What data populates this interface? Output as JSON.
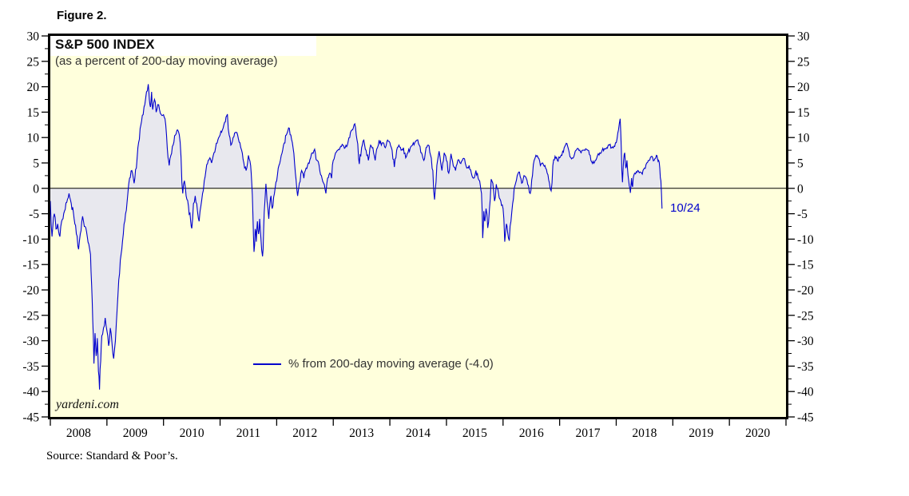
{
  "figure": {
    "label": "Figure 2."
  },
  "watermark": "yardeni.com",
  "source_note": "Source: Standard & Poor’s.",
  "colors": {
    "plot_bg": "#FFFFDC",
    "area_fill": "#E8E8EE",
    "line": "#0000CC",
    "annotation": "#0000CC",
    "zero_line": "#000000",
    "axis_text": "#000000"
  },
  "chart_data": {
    "type": "area",
    "title": "S&P 500 INDEX",
    "subtitle": "(as a percent of 200-day moving average)",
    "legend": {
      "label": "% from 200-day moving average (-4.0)"
    },
    "annotation": {
      "label": "10/24",
      "value": -4.0
    },
    "x_axis": {
      "start_year": 2008,
      "end_year": 2021,
      "year_labels": [
        "2008",
        "2009",
        "2010",
        "2011",
        "2012",
        "2013",
        "2014",
        "2015",
        "2016",
        "2017",
        "2018",
        "2019",
        "2020"
      ]
    },
    "y_axis": {
      "min": -45,
      "max": 30,
      "major_step": 5,
      "minor_step": 2.5
    },
    "zero_line": 0,
    "grid": false,
    "legend_position": "bottom-center-inside",
    "series_name": "% from 200-day moving average",
    "series": [
      [
        2008.0,
        -2.5
      ],
      [
        2008.03,
        -9.5
      ],
      [
        2008.07,
        -5.0
      ],
      [
        2008.1,
        -8.0
      ],
      [
        2008.13,
        -7.0
      ],
      [
        2008.17,
        -9.5
      ],
      [
        2008.2,
        -6.5
      ],
      [
        2008.25,
        -4.5
      ],
      [
        2008.29,
        -2.8
      ],
      [
        2008.33,
        -1.0
      ],
      [
        2008.37,
        -3.0
      ],
      [
        2008.42,
        -6.0
      ],
      [
        2008.46,
        -9.0
      ],
      [
        2008.5,
        -12.0
      ],
      [
        2008.53,
        -9.0
      ],
      [
        2008.57,
        -5.5
      ],
      [
        2008.6,
        -7.5
      ],
      [
        2008.64,
        -8.5
      ],
      [
        2008.68,
        -11.0
      ],
      [
        2008.71,
        -13.0
      ],
      [
        2008.73,
        -19.0
      ],
      [
        2008.75,
        -26.0
      ],
      [
        2008.77,
        -34.5
      ],
      [
        2008.79,
        -28.5
      ],
      [
        2008.81,
        -33.0
      ],
      [
        2008.83,
        -29.5
      ],
      [
        2008.85,
        -36.0
      ],
      [
        2008.87,
        -39.6
      ],
      [
        2008.89,
        -34.0
      ],
      [
        2008.91,
        -29.0
      ],
      [
        2008.94,
        -27.5
      ],
      [
        2008.97,
        -25.5
      ],
      [
        2009.0,
        -28.0
      ],
      [
        2009.03,
        -31.0
      ],
      [
        2009.06,
        -27.5
      ],
      [
        2009.09,
        -30.5
      ],
      [
        2009.12,
        -33.5
      ],
      [
        2009.15,
        -30.0
      ],
      [
        2009.18,
        -24.0
      ],
      [
        2009.21,
        -18.0
      ],
      [
        2009.25,
        -13.0
      ],
      [
        2009.29,
        -9.0
      ],
      [
        2009.33,
        -5.0
      ],
      [
        2009.37,
        -1.0
      ],
      [
        2009.4,
        2.0
      ],
      [
        2009.44,
        3.5
      ],
      [
        2009.48,
        1.0
      ],
      [
        2009.52,
        4.0
      ],
      [
        2009.56,
        9.0
      ],
      [
        2009.6,
        12.5
      ],
      [
        2009.64,
        14.5
      ],
      [
        2009.67,
        16.5
      ],
      [
        2009.7,
        19.0
      ],
      [
        2009.73,
        20.5
      ],
      [
        2009.75,
        17.5
      ],
      [
        2009.77,
        16.0
      ],
      [
        2009.79,
        19.0
      ],
      [
        2009.81,
        15.5
      ],
      [
        2009.84,
        17.5
      ],
      [
        2009.87,
        15.0
      ],
      [
        2009.9,
        16.5
      ],
      [
        2009.93,
        15.5
      ],
      [
        2009.96,
        14.5
      ],
      [
        2010.0,
        14.5
      ],
      [
        2010.04,
        12.5
      ],
      [
        2010.08,
        6.0
      ],
      [
        2010.1,
        4.5
      ],
      [
        2010.13,
        6.5
      ],
      [
        2010.17,
        8.5
      ],
      [
        2010.21,
        10.5
      ],
      [
        2010.25,
        11.5
      ],
      [
        2010.28,
        10.5
      ],
      [
        2010.31,
        6.0
      ],
      [
        2010.34,
        -1.0
      ],
      [
        2010.37,
        1.5
      ],
      [
        2010.4,
        -1.5
      ],
      [
        2010.44,
        -3.5
      ],
      [
        2010.48,
        -6.5
      ],
      [
        2010.5,
        -7.9
      ],
      [
        2010.53,
        -3.0
      ],
      [
        2010.56,
        -1.5
      ],
      [
        2010.6,
        -4.5
      ],
      [
        2010.63,
        -6.5
      ],
      [
        2010.66,
        -3.5
      ],
      [
        2010.69,
        -1.0
      ],
      [
        2010.72,
        1.5
      ],
      [
        2010.75,
        3.5
      ],
      [
        2010.79,
        5.5
      ],
      [
        2010.82,
        6.0
      ],
      [
        2010.85,
        5.0
      ],
      [
        2010.88,
        6.5
      ],
      [
        2010.92,
        8.0
      ],
      [
        2010.96,
        9.5
      ],
      [
        2011.0,
        10.5
      ],
      [
        2011.04,
        11.5
      ],
      [
        2011.08,
        13.0
      ],
      [
        2011.13,
        14.6
      ],
      [
        2011.16,
        10.5
      ],
      [
        2011.19,
        8.5
      ],
      [
        2011.23,
        10.0
      ],
      [
        2011.27,
        11.0
      ],
      [
        2011.31,
        10.5
      ],
      [
        2011.35,
        9.0
      ],
      [
        2011.38,
        7.5
      ],
      [
        2011.42,
        5.0
      ],
      [
        2011.46,
        3.5
      ],
      [
        2011.5,
        6.5
      ],
      [
        2011.54,
        4.5
      ],
      [
        2011.56,
        1.0
      ],
      [
        2011.58,
        -5.0
      ],
      [
        2011.6,
        -12.5
      ],
      [
        2011.62,
        -8.0
      ],
      [
        2011.64,
        -10.5
      ],
      [
        2011.66,
        -6.5
      ],
      [
        2011.68,
        -9.0
      ],
      [
        2011.7,
        -6.0
      ],
      [
        2011.72,
        -9.5
      ],
      [
        2011.75,
        -13.4
      ],
      [
        2011.77,
        -8.0
      ],
      [
        2011.79,
        -3.0
      ],
      [
        2011.81,
        0.9
      ],
      [
        2011.83,
        -2.5
      ],
      [
        2011.86,
        -6.0
      ],
      [
        2011.88,
        -3.0
      ],
      [
        2011.9,
        -1.5
      ],
      [
        2011.92,
        -4.0
      ],
      [
        2011.96,
        -1.0
      ],
      [
        2012.0,
        1.5
      ],
      [
        2012.04,
        4.5
      ],
      [
        2012.08,
        6.5
      ],
      [
        2012.12,
        8.5
      ],
      [
        2012.17,
        10.5
      ],
      [
        2012.21,
        11.9
      ],
      [
        2012.25,
        10.5
      ],
      [
        2012.29,
        8.0
      ],
      [
        2012.33,
        3.0
      ],
      [
        2012.37,
        -1.5
      ],
      [
        2012.4,
        1.0
      ],
      [
        2012.44,
        3.5
      ],
      [
        2012.48,
        2.0
      ],
      [
        2012.52,
        4.0
      ],
      [
        2012.56,
        5.0
      ],
      [
        2012.6,
        6.0
      ],
      [
        2012.63,
        7.0
      ],
      [
        2012.67,
        7.7
      ],
      [
        2012.71,
        5.5
      ],
      [
        2012.75,
        4.5
      ],
      [
        2012.79,
        2.5
      ],
      [
        2012.83,
        1.0
      ],
      [
        2012.87,
        -1.0
      ],
      [
        2012.9,
        2.0
      ],
      [
        2012.94,
        3.0
      ],
      [
        2012.97,
        2.0
      ],
      [
        2013.0,
        5.5
      ],
      [
        2013.04,
        7.0
      ],
      [
        2013.08,
        7.5
      ],
      [
        2013.12,
        8.0
      ],
      [
        2013.17,
        8.5
      ],
      [
        2013.21,
        8.0
      ],
      [
        2013.25,
        8.5
      ],
      [
        2013.29,
        10.0
      ],
      [
        2013.33,
        11.5
      ],
      [
        2013.38,
        12.7
      ],
      [
        2013.42,
        9.5
      ],
      [
        2013.46,
        4.8
      ],
      [
        2013.5,
        8.0
      ],
      [
        2013.54,
        9.5
      ],
      [
        2013.58,
        7.5
      ],
      [
        2013.62,
        5.5
      ],
      [
        2013.66,
        8.5
      ],
      [
        2013.7,
        8.0
      ],
      [
        2013.74,
        5.5
      ],
      [
        2013.78,
        8.0
      ],
      [
        2013.81,
        9.5
      ],
      [
        2013.85,
        8.5
      ],
      [
        2013.88,
        9.0
      ],
      [
        2013.92,
        8.0
      ],
      [
        2013.96,
        9.5
      ],
      [
        2014.0,
        9.0
      ],
      [
        2014.04,
        7.5
      ],
      [
        2014.08,
        4.2
      ],
      [
        2014.12,
        7.5
      ],
      [
        2014.16,
        8.5
      ],
      [
        2014.2,
        7.5
      ],
      [
        2014.24,
        8.0
      ],
      [
        2014.28,
        6.0
      ],
      [
        2014.32,
        7.0
      ],
      [
        2014.36,
        8.0
      ],
      [
        2014.4,
        8.5
      ],
      [
        2014.44,
        9.0
      ],
      [
        2014.48,
        9.5
      ],
      [
        2014.52,
        8.5
      ],
      [
        2014.56,
        7.0
      ],
      [
        2014.6,
        5.5
      ],
      [
        2014.64,
        8.0
      ],
      [
        2014.68,
        8.5
      ],
      [
        2014.72,
        6.5
      ],
      [
        2014.76,
        3.5
      ],
      [
        2014.79,
        -2.2
      ],
      [
        2014.83,
        4.5
      ],
      [
        2014.87,
        7.3
      ],
      [
        2014.9,
        5.0
      ],
      [
        2014.92,
        3.5
      ],
      [
        2014.96,
        7.0
      ],
      [
        2015.0,
        5.5
      ],
      [
        2015.04,
        3.0
      ],
      [
        2015.08,
        6.8
      ],
      [
        2015.12,
        4.5
      ],
      [
        2015.16,
        3.5
      ],
      [
        2015.2,
        5.5
      ],
      [
        2015.24,
        5.0
      ],
      [
        2015.28,
        5.5
      ],
      [
        2015.32,
        5.8
      ],
      [
        2015.36,
        4.0
      ],
      [
        2015.4,
        4.5
      ],
      [
        2015.44,
        3.0
      ],
      [
        2015.48,
        2.0
      ],
      [
        2015.52,
        3.5
      ],
      [
        2015.56,
        2.0
      ],
      [
        2015.6,
        0.5
      ],
      [
        2015.62,
        -1.0
      ],
      [
        2015.64,
        -9.8
      ],
      [
        2015.66,
        -4.5
      ],
      [
        2015.68,
        -6.5
      ],
      [
        2015.7,
        -4.0
      ],
      [
        2015.73,
        -7.8
      ],
      [
        2015.76,
        -4.0
      ],
      [
        2015.79,
        1.8
      ],
      [
        2015.82,
        1.0
      ],
      [
        2015.85,
        -2.5
      ],
      [
        2015.88,
        0.8
      ],
      [
        2015.92,
        -1.0
      ],
      [
        2015.96,
        -2.5
      ],
      [
        2016.0,
        -4.0
      ],
      [
        2016.03,
        -10.5
      ],
      [
        2016.06,
        -7.0
      ],
      [
        2016.08,
        -8.5
      ],
      [
        2016.11,
        -10.3
      ],
      [
        2016.14,
        -6.5
      ],
      [
        2016.17,
        -3.0
      ],
      [
        2016.21,
        0.5
      ],
      [
        2016.25,
        2.5
      ],
      [
        2016.29,
        3.2
      ],
      [
        2016.33,
        1.0
      ],
      [
        2016.37,
        2.5
      ],
      [
        2016.41,
        2.0
      ],
      [
        2016.45,
        0.5
      ],
      [
        2016.48,
        -1.0
      ],
      [
        2016.52,
        2.5
      ],
      [
        2016.55,
        5.5
      ],
      [
        2016.58,
        6.5
      ],
      [
        2016.62,
        6.0
      ],
      [
        2016.66,
        4.5
      ],
      [
        2016.7,
        5.0
      ],
      [
        2016.74,
        4.5
      ],
      [
        2016.78,
        3.0
      ],
      [
        2016.82,
        1.0
      ],
      [
        2016.85,
        -0.5
      ],
      [
        2016.88,
        4.5
      ],
      [
        2016.92,
        6.3
      ],
      [
        2016.96,
        5.5
      ],
      [
        2017.0,
        6.0
      ],
      [
        2017.04,
        6.5
      ],
      [
        2017.08,
        8.0
      ],
      [
        2017.13,
        8.8
      ],
      [
        2017.17,
        7.0
      ],
      [
        2017.21,
        5.8
      ],
      [
        2017.25,
        6.2
      ],
      [
        2017.29,
        7.5
      ],
      [
        2017.33,
        7.8
      ],
      [
        2017.38,
        7.0
      ],
      [
        2017.42,
        7.5
      ],
      [
        2017.46,
        7.8
      ],
      [
        2017.5,
        7.5
      ],
      [
        2017.54,
        6.5
      ],
      [
        2017.58,
        4.9
      ],
      [
        2017.63,
        5.5
      ],
      [
        2017.67,
        6.5
      ],
      [
        2017.71,
        7.0
      ],
      [
        2017.75,
        7.5
      ],
      [
        2017.79,
        7.8
      ],
      [
        2017.83,
        8.0
      ],
      [
        2017.88,
        8.5
      ],
      [
        2017.92,
        8.0
      ],
      [
        2017.96,
        8.3
      ],
      [
        2018.0,
        9.0
      ],
      [
        2018.04,
        11.5
      ],
      [
        2018.07,
        13.7
      ],
      [
        2018.09,
        8.0
      ],
      [
        2018.1,
        3.5
      ],
      [
        2018.11,
        1.2
      ],
      [
        2018.13,
        5.5
      ],
      [
        2018.15,
        7.0
      ],
      [
        2018.17,
        4.0
      ],
      [
        2018.19,
        5.5
      ],
      [
        2018.21,
        2.5
      ],
      [
        2018.23,
        0.5
      ],
      [
        2018.25,
        -0.9
      ],
      [
        2018.27,
        2.0
      ],
      [
        2018.29,
        0.3
      ],
      [
        2018.31,
        2.5
      ],
      [
        2018.33,
        3.0
      ],
      [
        2018.38,
        3.5
      ],
      [
        2018.42,
        3.2
      ],
      [
        2018.46,
        2.8
      ],
      [
        2018.5,
        4.0
      ],
      [
        2018.54,
        5.0
      ],
      [
        2018.58,
        5.5
      ],
      [
        2018.63,
        6.3
      ],
      [
        2018.67,
        5.5
      ],
      [
        2018.71,
        6.5
      ],
      [
        2018.73,
        5.8
      ],
      [
        2018.75,
        5.5
      ],
      [
        2018.77,
        4.0
      ],
      [
        2018.79,
        1.5
      ],
      [
        2018.8,
        -1.0
      ],
      [
        2018.81,
        -4.0
      ]
    ]
  }
}
